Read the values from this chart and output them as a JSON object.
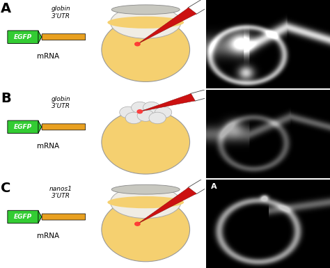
{
  "panel_labels": [
    "A",
    "B",
    "C"
  ],
  "gene_labels": [
    "globin\n3’UTR",
    "globin\n3’UTR",
    "nanos1\n3’UTR"
  ],
  "mrna_label": "mRNA",
  "egfp_label": "EGFP",
  "panel_label_fontsize": 14,
  "gene_label_fontsize": 6.5,
  "mrna_fontsize": 7.5,
  "egfp_fontsize": 6.5,
  "bg_color": "#ffffff",
  "egfp_color": "#33cc33",
  "utr_color": "#e8a020",
  "egg_color_light": "#f5d070",
  "egg_color_dark": "#e0a020",
  "needle_color": "#cc1111",
  "cells_color": "#e8e8e8",
  "cup_color": "#d8d8d0",
  "corner_label": "A"
}
